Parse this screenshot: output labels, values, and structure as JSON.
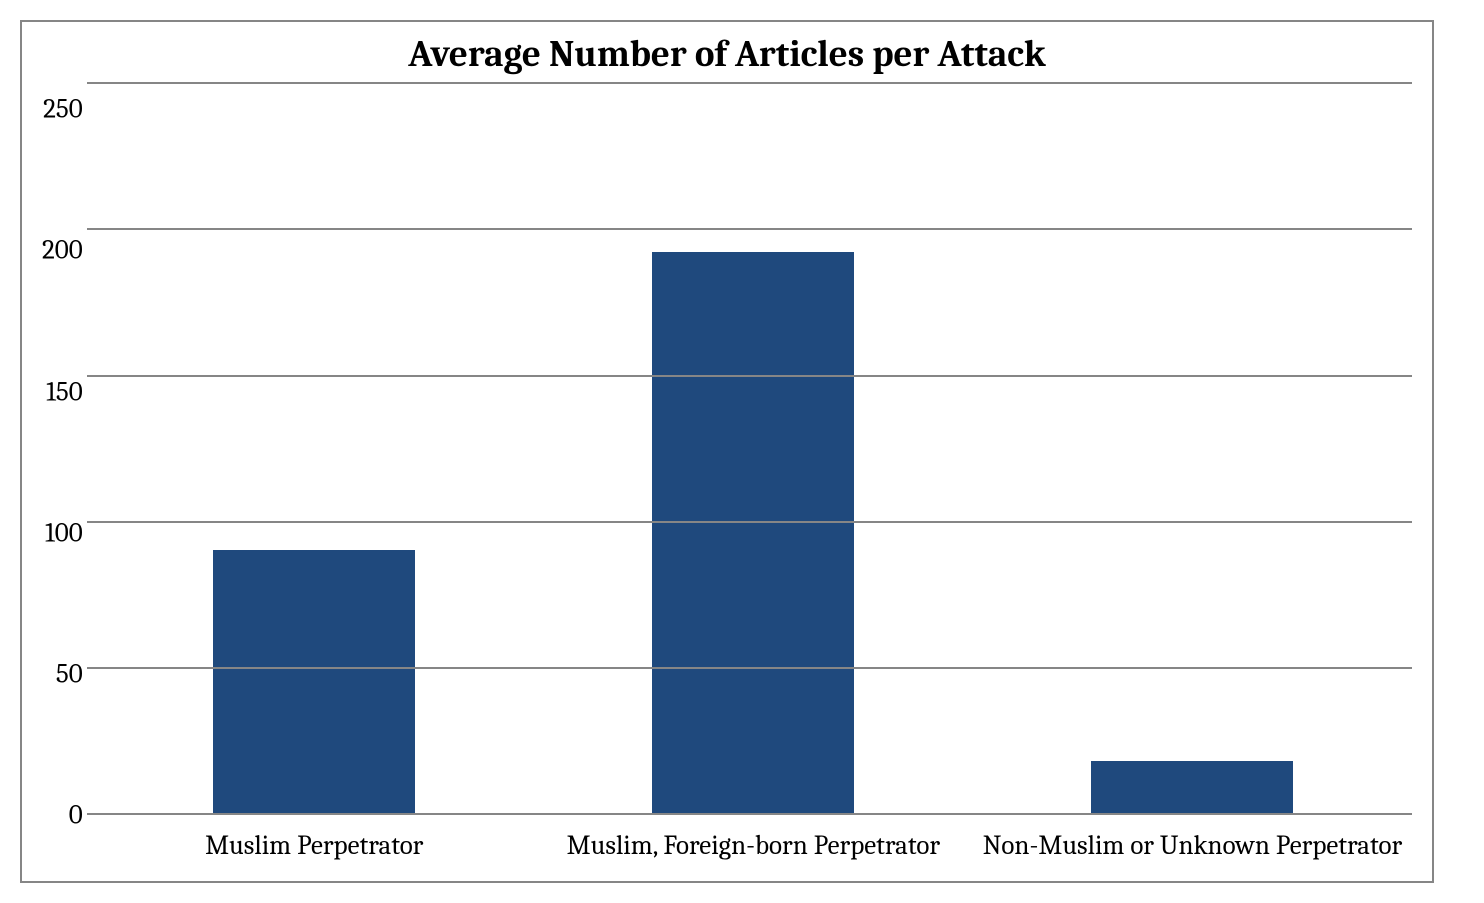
{
  "chart": {
    "type": "bar",
    "title": "Average Number of Articles per Attack",
    "title_fontsize": 37,
    "title_fontweight": "bold",
    "title_color": "#000000",
    "categories": [
      "Muslim Perpetrator",
      "Muslim, Foreign-born Perpetrator",
      "Non-Muslim or Unknown Perpetrator"
    ],
    "values": [
      90,
      192,
      18
    ],
    "bar_colors": [
      "#1f497d",
      "#1f497d",
      "#1f497d"
    ],
    "bar_width": 0.46,
    "ylim": [
      0,
      250
    ],
    "ytick_step": 50,
    "yticks": [
      0,
      50,
      100,
      150,
      200,
      250
    ],
    "axis_label_fontsize": 27,
    "axis_label_color": "#000000",
    "grid_color": "#868686",
    "grid_linewidth": 2,
    "border_color": "#868686",
    "border_linewidth": 2,
    "background_color": "#ffffff",
    "font_family": "Cambria, Georgia, 'Times New Roman', serif"
  }
}
